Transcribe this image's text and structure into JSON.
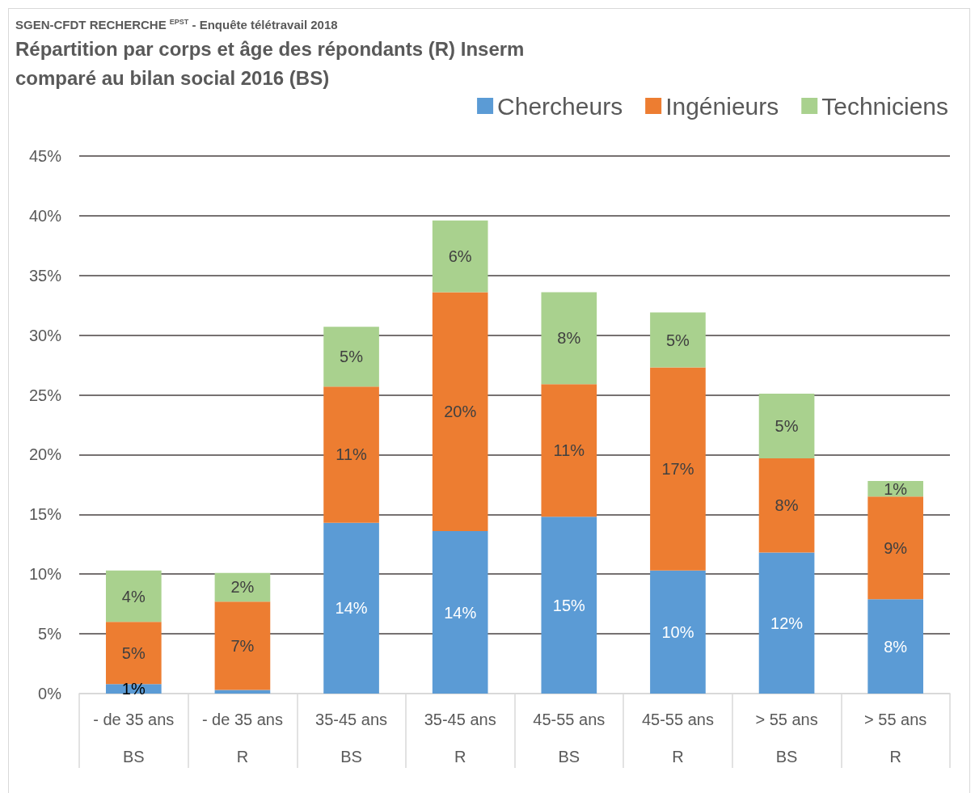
{
  "chart_data": {
    "type": "bar",
    "stacked": true,
    "subtitle": "SGEN-CFDT RECHERCHE $^{EPST}$ - Enquête télétravail 2018",
    "title": "Répartition par corps et âge des répondants (R) Inserm comparé au bilan social 2016 (BS)",
    "categories": [
      "- de 35 ans\nBS",
      "- de 35 ans\nR",
      "35-45 ans\nBS",
      "35-45 ans\nR",
      "45-55 ans\nBS",
      "45-55 ans\nR",
      "> 55 ans\nBS",
      "> 55 ans\nR"
    ],
    "series": [
      {
        "name": "Chercheurs",
        "color": "#5b9bd5",
        "values": [
          0.8,
          0.3,
          14.3,
          13.6,
          14.8,
          10.3,
          11.8,
          7.9
        ],
        "value_labels": [
          "1%",
          null,
          "14%",
          "14%",
          "15%",
          "10%",
          "12%",
          "8%"
        ]
      },
      {
        "name": "Ingénieurs",
        "color": "#ed7d31",
        "values": [
          5.2,
          7.4,
          11.4,
          20.0,
          11.1,
          17.0,
          7.9,
          8.6
        ],
        "value_labels": [
          "5%",
          "7%",
          "11%",
          "20%",
          "11%",
          "17%",
          "8%",
          "9%"
        ]
      },
      {
        "name": "Techniciens",
        "color": "#a9d18e",
        "values": [
          4.3,
          2.4,
          5.0,
          6.0,
          7.7,
          4.6,
          5.4,
          1.3
        ],
        "value_labels": [
          "4%",
          "2%",
          "5%",
          "6%",
          "8%",
          "5%",
          "5%",
          "1%"
        ]
      }
    ],
    "ylim": [
      0,
      45
    ],
    "yticks": [
      {
        "value": 0,
        "label": "0%"
      },
      {
        "value": 5,
        "label": "5%"
      },
      {
        "value": 10,
        "label": "10%"
      },
      {
        "value": 15,
        "label": "15%"
      },
      {
        "value": 20,
        "label": "20%"
      },
      {
        "value": 25,
        "label": "25%"
      },
      {
        "value": 30,
        "label": "30%"
      },
      {
        "value": 35,
        "label": "35%"
      },
      {
        "value": 40,
        "label": "40%"
      },
      {
        "value": 45,
        "label": "45%"
      }
    ],
    "grid": "y",
    "legend": "top right"
  }
}
